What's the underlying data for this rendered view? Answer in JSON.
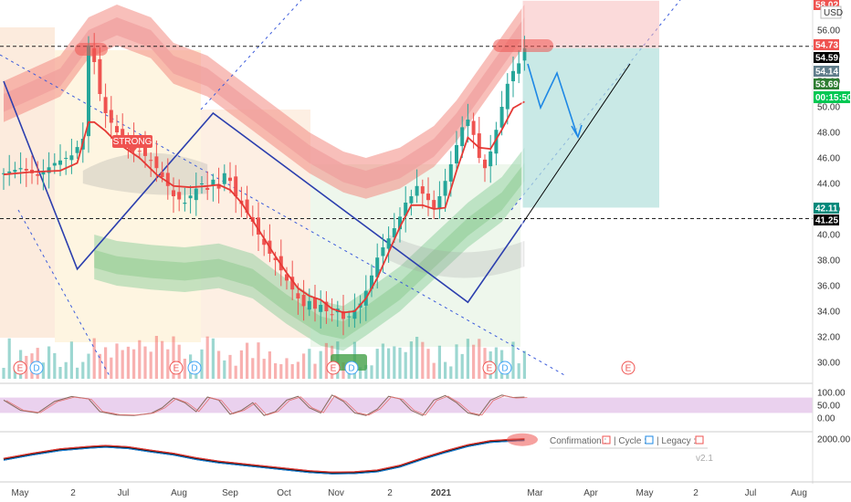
{
  "header": {
    "currency": "USD",
    "top_price": "58.02"
  },
  "price_tags": {
    "resistance": "54.73",
    "last": "54.59",
    "gray": "54.14",
    "green1": "53.69",
    "green2": "00:15:50",
    "target": "42.11",
    "support": "41.25"
  },
  "signals": {
    "strong_label": "STRONG",
    "earnings": "E",
    "dividend": "D"
  },
  "legend": {
    "confirmation": "Confirmation :",
    "cycle": "| Cycle :",
    "legacy": "| Legacy :",
    "version": "v2.1"
  },
  "colors": {
    "bull": "#26a69a",
    "bear": "#ef5350",
    "trend": "#2c3fae",
    "band_red": "#f28b82",
    "band_green": "#81c995",
    "rsi_bg": "#e1bee7"
  },
  "chart_data": [
    {
      "type": "candlestick",
      "x_axis_labels": [
        "May",
        "2",
        "Jul",
        "Aug",
        "Sep",
        "Oct",
        "Nov",
        "2",
        "2021",
        "Mar",
        "Apr",
        "May",
        "2",
        "Jul",
        "Aug"
      ],
      "y_tick_labels": [
        "56.00",
        "54.00",
        "52.00",
        "50.00",
        "48.00",
        "46.00",
        "44.00",
        "42.00",
        "40.00",
        "38.00",
        "36.00",
        "34.00",
        "32.00",
        "30.00"
      ],
      "ylim": [
        29,
        58.5
      ],
      "close_path": [
        [
          0,
          44.8
        ],
        [
          3,
          45.2
        ],
        [
          6,
          44.6
        ],
        [
          9,
          45.6
        ],
        [
          12,
          46.2
        ],
        [
          14,
          47.5
        ],
        [
          15,
          54.8
        ],
        [
          16,
          53.5
        ],
        [
          17,
          51
        ],
        [
          18,
          49.5
        ],
        [
          20,
          48
        ],
        [
          22,
          47.2
        ],
        [
          24,
          46.5
        ],
        [
          26,
          45.8
        ],
        [
          27,
          45.2
        ],
        [
          28,
          44.5
        ],
        [
          29,
          43.8
        ],
        [
          30,
          43.0
        ],
        [
          32,
          42.5
        ],
        [
          34,
          43.6
        ],
        [
          35,
          44.0
        ],
        [
          36,
          43.5
        ],
        [
          37,
          44.3
        ],
        [
          38,
          43.6
        ],
        [
          39,
          44.8
        ],
        [
          40,
          44.2
        ],
        [
          41,
          43.0
        ],
        [
          42,
          42.4
        ],
        [
          43,
          41.7
        ],
        [
          44,
          41.0
        ],
        [
          45,
          40.0
        ],
        [
          46,
          39.2
        ],
        [
          47,
          38.5
        ],
        [
          48,
          38.0
        ],
        [
          49,
          37.2
        ],
        [
          50,
          36.4
        ],
        [
          51,
          35.7
        ],
        [
          52,
          35.0
        ],
        [
          53,
          34.4
        ],
        [
          54,
          34.8
        ],
        [
          55,
          34.2
        ],
        [
          56,
          34.5
        ],
        [
          57,
          34.0
        ],
        [
          58,
          33.7
        ],
        [
          59,
          34.2
        ],
        [
          60,
          33.4
        ],
        [
          61,
          33.6
        ],
        [
          62,
          34.1
        ],
        [
          63,
          34.6
        ],
        [
          64,
          35.6
        ],
        [
          65,
          36.8
        ],
        [
          66,
          38.2
        ],
        [
          67,
          39.0
        ],
        [
          68,
          39.7
        ],
        [
          69,
          40.5
        ],
        [
          70,
          41.4
        ],
        [
          71,
          42.5
        ],
        [
          72,
          43.0
        ],
        [
          73,
          43.8
        ],
        [
          74,
          43.2
        ],
        [
          75,
          42.7
        ],
        [
          76,
          42.0
        ],
        [
          77,
          43.0
        ],
        [
          78,
          44.2
        ],
        [
          79,
          45.5
        ],
        [
          80,
          47.0
        ],
        [
          81,
          48.4
        ],
        [
          82,
          49.0
        ],
        [
          83,
          47.8
        ],
        [
          84,
          46.0
        ],
        [
          85,
          45.2
        ],
        [
          86,
          46.5
        ],
        [
          87,
          48.2
        ],
        [
          88,
          50.0
        ],
        [
          89,
          51.8
        ],
        [
          90,
          52.8
        ],
        [
          91,
          53.4
        ],
        [
          92,
          54.59
        ]
      ],
      "signal_line": [
        [
          0,
          44.7
        ],
        [
          5,
          44.9
        ],
        [
          10,
          45.0
        ],
        [
          13,
          45.6
        ],
        [
          15,
          48.8
        ],
        [
          16,
          48.8
        ],
        [
          18,
          48.1
        ],
        [
          20,
          47.2
        ],
        [
          24,
          46.0
        ],
        [
          27,
          44.7
        ],
        [
          30,
          43.8
        ],
        [
          33,
          43.7
        ],
        [
          36,
          43.8
        ],
        [
          38,
          43.9
        ],
        [
          40,
          43.5
        ],
        [
          42,
          42.5
        ],
        [
          44,
          41.1
        ],
        [
          46,
          39.7
        ],
        [
          48,
          38.3
        ],
        [
          50,
          37.0
        ],
        [
          52,
          35.8
        ],
        [
          54,
          35.2
        ],
        [
          56,
          34.9
        ],
        [
          58,
          34.2
        ],
        [
          60,
          33.9
        ],
        [
          62,
          34.0
        ],
        [
          64,
          35.0
        ],
        [
          66,
          36.6
        ],
        [
          68,
          38.6
        ],
        [
          70,
          40.6
        ],
        [
          72,
          42.3
        ],
        [
          74,
          42.3
        ],
        [
          76,
          42.0
        ],
        [
          78,
          42.1
        ],
        [
          80,
          45.0
        ],
        [
          82,
          47.6
        ],
        [
          84,
          46.8
        ],
        [
          86,
          46.7
        ],
        [
          88,
          48.2
        ],
        [
          90,
          49.9
        ],
        [
          92,
          50.4
        ]
      ],
      "trend_lines": [
        {
          "name": "wave",
          "points": [
            [
              0,
              52
            ],
            [
              13,
              37.3
            ],
            [
              37,
              49.5
            ],
            [
              82,
              34.7
            ],
            [
              92,
              41.1
            ]
          ]
        }
      ],
      "support_level": 41.25,
      "resistance_level": 54.73,
      "projection": {
        "entry": 54.59,
        "stop": 58.3,
        "target": 42.11
      }
    },
    {
      "type": "line",
      "name": "rsi",
      "y_tick_labels": [
        "100.00",
        "50.00",
        "0.00"
      ],
      "ylim": [
        0,
        100
      ],
      "band": [
        20,
        80
      ],
      "values": [
        [
          0,
          70
        ],
        [
          3,
          30
        ],
        [
          6,
          20
        ],
        [
          9,
          65
        ],
        [
          12,
          84
        ],
        [
          15,
          75
        ],
        [
          17,
          25
        ],
        [
          20,
          12
        ],
        [
          23,
          10
        ],
        [
          26,
          18
        ],
        [
          28,
          40
        ],
        [
          30,
          78
        ],
        [
          32,
          60
        ],
        [
          34,
          25
        ],
        [
          36,
          82
        ],
        [
          38,
          70
        ],
        [
          40,
          15
        ],
        [
          42,
          30
        ],
        [
          44,
          60
        ],
        [
          46,
          10
        ],
        [
          48,
          25
        ],
        [
          50,
          70
        ],
        [
          52,
          85
        ],
        [
          54,
          40
        ],
        [
          56,
          20
        ],
        [
          58,
          90
        ],
        [
          60,
          65
        ],
        [
          62,
          20
        ],
        [
          64,
          10
        ],
        [
          66,
          35
        ],
        [
          68,
          85
        ],
        [
          70,
          75
        ],
        [
          72,
          30
        ],
        [
          74,
          10
        ],
        [
          76,
          70
        ],
        [
          78,
          88
        ],
        [
          80,
          60
        ],
        [
          82,
          20
        ],
        [
          84,
          10
        ],
        [
          86,
          70
        ],
        [
          88,
          90
        ],
        [
          90,
          80
        ],
        [
          92,
          82
        ]
      ]
    },
    {
      "type": "line",
      "name": "cycle",
      "y_tick_labels": [
        "2000.00"
      ],
      "values": [
        [
          0,
          1400
        ],
        [
          5,
          1550
        ],
        [
          10,
          1680
        ],
        [
          15,
          1750
        ],
        [
          18,
          1780
        ],
        [
          22,
          1740
        ],
        [
          26,
          1640
        ],
        [
          30,
          1550
        ],
        [
          34,
          1420
        ],
        [
          38,
          1320
        ],
        [
          42,
          1250
        ],
        [
          46,
          1180
        ],
        [
          50,
          1110
        ],
        [
          54,
          1040
        ],
        [
          58,
          1000
        ],
        [
          62,
          1010
        ],
        [
          66,
          1060
        ],
        [
          70,
          1200
        ],
        [
          74,
          1420
        ],
        [
          78,
          1620
        ],
        [
          82,
          1800
        ],
        [
          86,
          1920
        ],
        [
          90,
          1960
        ],
        [
          92,
          1975
        ]
      ]
    }
  ]
}
